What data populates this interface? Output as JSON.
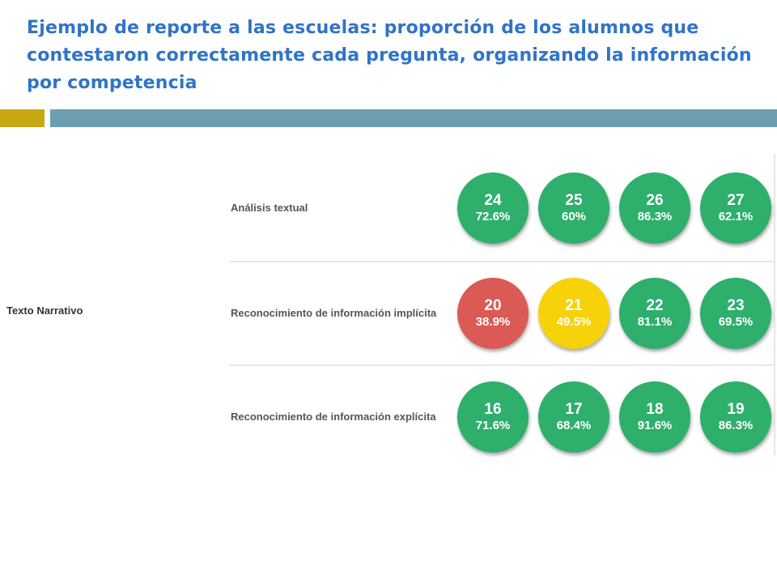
{
  "title": "Ejemplo de reporte a las escuelas: proporción de los alumnos que contestaron correctamente cada pregunta, organizando la información por competencia",
  "colors": {
    "green": "#2eaf6c",
    "yellow": "#f6d20a",
    "red": "#dc5a55",
    "title": "#2f74c8",
    "accent_gold": "#c8a811",
    "accent_blue": "#6b9fb0"
  },
  "report": {
    "category": "Texto Narrativo",
    "rows": [
      {
        "label": "Análisis textual",
        "items": [
          {
            "q": "24",
            "pct": "72.6%",
            "color": "#2eaf6c"
          },
          {
            "q": "25",
            "pct": "60%",
            "color": "#2eaf6c"
          },
          {
            "q": "26",
            "pct": "86.3%",
            "color": "#2eaf6c"
          },
          {
            "q": "27",
            "pct": "62.1%",
            "color": "#2eaf6c"
          }
        ]
      },
      {
        "label": "Reconocimiento de información implícita",
        "items": [
          {
            "q": "20",
            "pct": "38.9%",
            "color": "#dc5a55"
          },
          {
            "q": "21",
            "pct": "49.5%",
            "color": "#f6d20a"
          },
          {
            "q": "22",
            "pct": "81.1%",
            "color": "#2eaf6c"
          },
          {
            "q": "23",
            "pct": "69.5%",
            "color": "#2eaf6c"
          }
        ]
      },
      {
        "label": "Reconocimiento de información explícita",
        "items": [
          {
            "q": "16",
            "pct": "71.6%",
            "color": "#2eaf6c"
          },
          {
            "q": "17",
            "pct": "68.4%",
            "color": "#2eaf6c"
          },
          {
            "q": "18",
            "pct": "91.6%",
            "color": "#2eaf6c"
          },
          {
            "q": "19",
            "pct": "86.3%",
            "color": "#2eaf6c"
          }
        ]
      }
    ]
  }
}
